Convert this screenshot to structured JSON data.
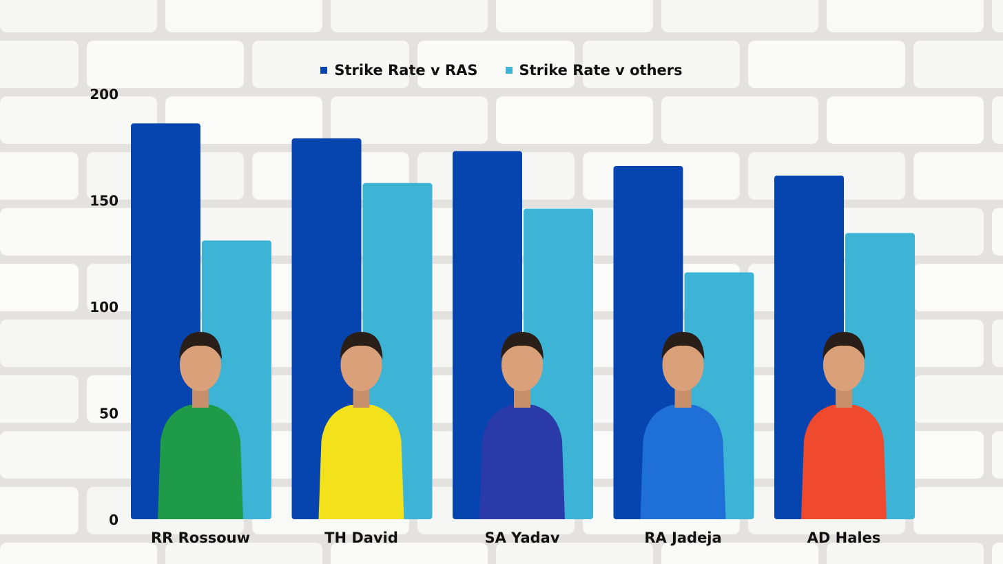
{
  "chart_data": {
    "type": "bar",
    "categories": [
      "RR Rossouw",
      "TH David",
      "SA Yadav",
      "RA Jadeja",
      "AD Hales"
    ],
    "series": [
      {
        "name": "Strike Rate v RAS",
        "values": [
          186,
          179,
          173,
          166,
          161.5
        ],
        "color": "#0645b0"
      },
      {
        "name": "Strike Rate v others",
        "values": [
          131,
          158,
          146,
          116,
          134.5
        ],
        "color": "#3db4d6"
      }
    ],
    "yticks": [
      0,
      50,
      100,
      150,
      200
    ],
    "ylim": [
      0,
      200
    ],
    "legend_position": "top-center",
    "grid": false,
    "player_jersey_colors": [
      "#1f9a48",
      "#f3e11c",
      "#2a3aa8",
      "#1f6fd8",
      "#f04a2e"
    ]
  }
}
